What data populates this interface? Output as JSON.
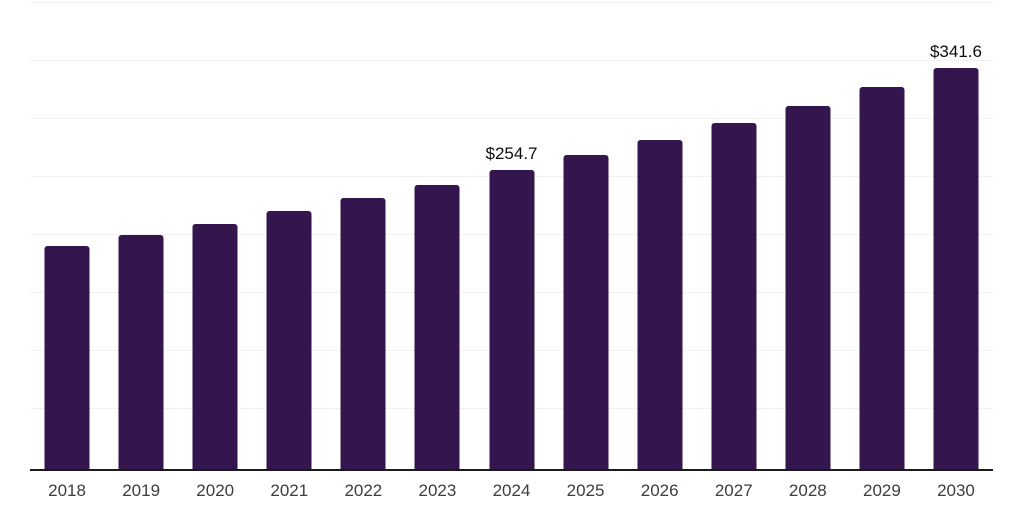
{
  "chart_data": {
    "type": "bar",
    "title": "",
    "xlabel": "",
    "ylabel": "",
    "categories": [
      "2018",
      "2019",
      "2020",
      "2021",
      "2022",
      "2023",
      "2024",
      "2025",
      "2026",
      "2027",
      "2028",
      "2029",
      "2030"
    ],
    "values": [
      190.0,
      199.4,
      209.4,
      219.9,
      230.9,
      242.5,
      254.7,
      267.4,
      280.8,
      294.9,
      309.6,
      325.1,
      341.6
    ],
    "data_labels": {
      "2024": "$254.7",
      "2030": "$341.6"
    },
    "ylim": [
      0,
      400
    ],
    "grid": true,
    "gridline_count": 8,
    "legend": "none",
    "colors": {
      "bar": "#32164d",
      "axis_line": "#1a1a1a",
      "gridline": "#f1f1f1",
      "value_label": "#0e0e0e",
      "tick_label": "#3d3d3d",
      "background": "#ffffff"
    }
  }
}
